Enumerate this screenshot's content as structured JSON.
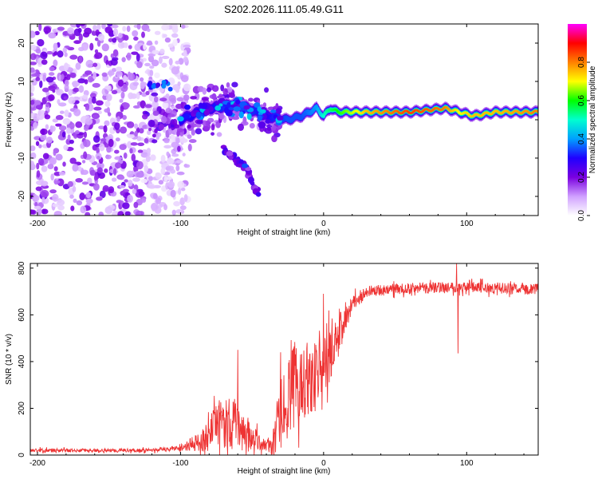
{
  "chart_data": [
    {
      "type": "heatmap",
      "title": "S202.2026.111.05.49.G11",
      "xlabel": "Height of straight line (km)",
      "ylabel": "Frequency (Hz)",
      "xlim": [
        -205,
        150
      ],
      "ylim": [
        -25,
        25
      ],
      "xticks": [
        -200,
        -100,
        0,
        100
      ],
      "xtick_labels": [
        "-200",
        "-100",
        "0",
        "100"
      ],
      "yticks": [
        -20,
        -10,
        0,
        10,
        20
      ],
      "ytick_labels": [
        "-20",
        "-10",
        "0",
        "10",
        "20"
      ],
      "colorbar": {
        "label": "Normalized spectral amplitude",
        "range": [
          0,
          1
        ],
        "ticks": [
          0,
          0.2,
          0.4,
          0.6,
          0.8
        ],
        "tick_labels": [
          "0.0",
          "0.2",
          "0.4",
          "0.6",
          "0.8"
        ],
        "colors": [
          "#ffffff",
          "#d0a0ff",
          "#7a00e0",
          "#2000ff",
          "#00a0ff",
          "#00ffd0",
          "#00ff00",
          "#ffff00",
          "#ff8000",
          "#ff0000",
          "#ff00ff"
        ]
      },
      "ridge": {
        "description_free": true,
        "x": [
          -100,
          -80,
          -60,
          -40,
          -25,
          -15,
          -5,
          0,
          5,
          10,
          30,
          60,
          85,
          95,
          105,
          120,
          150
        ],
        "y": [
          0,
          3,
          4,
          1,
          0,
          1,
          3,
          1,
          3,
          2,
          2,
          2,
          3,
          2,
          1,
          2,
          2
        ],
        "amp": [
          0.3,
          0.3,
          0.35,
          0.3,
          0.35,
          0.35,
          0.4,
          0.5,
          0.55,
          0.6,
          0.75,
          0.85,
          0.8,
          0.7,
          0.75,
          0.75,
          0.8
        ]
      },
      "branch": {
        "x": [
          -70,
          -60,
          -55,
          -45
        ],
        "y": [
          -8,
          -11,
          -12,
          -20
        ]
      },
      "noise_region_x": [
        -205,
        -95
      ]
    },
    {
      "type": "line",
      "xlabel": "Height of straight line (km)",
      "ylabel": "SNR (10 * v/v)",
      "xlim": [
        -205,
        150
      ],
      "ylim": [
        0,
        820
      ],
      "xticks": [
        -200,
        -100,
        0,
        100
      ],
      "xtick_labels": [
        "-200",
        "-100",
        "0",
        "100"
      ],
      "yticks": [
        0,
        200,
        400,
        600,
        800
      ],
      "ytick_labels": [
        "0",
        "200",
        "400",
        "600",
        "800"
      ],
      "color": "#ee3333",
      "envelope": {
        "x": [
          -205,
          -120,
          -100,
          -85,
          -70,
          -60,
          -50,
          -40,
          -35,
          -30,
          -20,
          -10,
          0,
          10,
          20,
          30,
          50,
          70,
          90,
          150
        ],
        "mean": [
          20,
          20,
          30,
          60,
          150,
          120,
          70,
          40,
          50,
          180,
          300,
          330,
          370,
          500,
          650,
          700,
          710,
          715,
          720,
          710
        ],
        "spread": [
          10,
          10,
          15,
          60,
          150,
          130,
          70,
          30,
          80,
          200,
          220,
          200,
          160,
          120,
          40,
          30,
          30,
          30,
          30,
          30
        ]
      },
      "spikes": [
        {
          "x": -60,
          "y": 450
        },
        {
          "x": -30,
          "y": 440
        },
        {
          "x": 0,
          "y": 690
        },
        {
          "x": 93,
          "y": 820
        },
        {
          "x": 94,
          "y": 435
        }
      ]
    }
  ]
}
